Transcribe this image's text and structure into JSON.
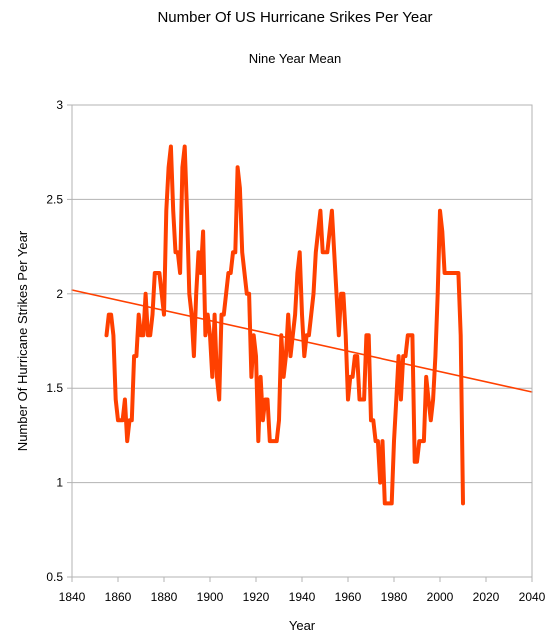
{
  "chart_data": {
    "type": "line",
    "title": "Number Of US Hurricane Srikes Per Year",
    "subtitle": "Nine Year Mean",
    "xlabel": "Year",
    "ylabel": "Number Of Hurricane Strikes Per Year",
    "xlim": [
      1840,
      2040
    ],
    "ylim": [
      0.5,
      3
    ],
    "x_ticks": [
      1840,
      1860,
      1880,
      1900,
      1920,
      1940,
      1960,
      1980,
      2000,
      2020,
      2040
    ],
    "y_ticks": [
      0.5,
      1,
      1.5,
      2,
      2.5,
      3
    ],
    "y_tick_labels": [
      "0.5",
      "1",
      "1.5",
      "2",
      "2.5",
      "3"
    ],
    "grid": true,
    "legend": "none",
    "series": [
      {
        "kind": "data",
        "color": "#ff4000",
        "x": [
          1855,
          1856,
          1857,
          1858,
          1859,
          1860,
          1861,
          1862,
          1863,
          1864,
          1865,
          1866,
          1867,
          1868,
          1869,
          1870,
          1871,
          1872,
          1873,
          1874,
          1875,
          1876,
          1877,
          1878,
          1879,
          1880,
          1881,
          1882,
          1883,
          1884,
          1885,
          1886,
          1887,
          1888,
          1889,
          1890,
          1891,
          1892,
          1893,
          1894,
          1895,
          1896,
          1897,
          1898,
          1899,
          1900,
          1901,
          1902,
          1903,
          1904,
          1905,
          1906,
          1907,
          1908,
          1909,
          1910,
          1911,
          1912,
          1913,
          1914,
          1915,
          1916,
          1917,
          1918,
          1919,
          1920,
          1921,
          1922,
          1923,
          1924,
          1925,
          1926,
          1927,
          1928,
          1929,
          1930,
          1931,
          1932,
          1933,
          1934,
          1935,
          1936,
          1937,
          1938,
          1939,
          1940,
          1941,
          1942,
          1943,
          1944,
          1945,
          1946,
          1947,
          1948,
          1949,
          1950,
          1951,
          1952,
          1953,
          1954,
          1955,
          1956,
          1957,
          1958,
          1959,
          1960,
          1961,
          1962,
          1963,
          1964,
          1965,
          1966,
          1967,
          1968,
          1969,
          1970,
          1971,
          1972,
          1973,
          1974,
          1975,
          1976,
          1977,
          1978,
          1979,
          1980,
          1981,
          1982,
          1983,
          1984,
          1985,
          1986,
          1987,
          1988,
          1989,
          1990,
          1991,
          1992,
          1993,
          1994,
          1995,
          1996,
          1997,
          1998,
          1999,
          2000,
          2001,
          2002,
          2003,
          2004,
          2005,
          2006,
          2007,
          2008,
          2009,
          2010
        ],
        "y": [
          1.78,
          1.89,
          1.89,
          1.78,
          1.44,
          1.33,
          1.33,
          1.33,
          1.44,
          1.22,
          1.33,
          1.33,
          1.67,
          1.67,
          1.89,
          1.78,
          1.78,
          2.0,
          1.78,
          1.78,
          1.89,
          2.11,
          2.11,
          2.11,
          2.0,
          1.89,
          2.44,
          2.67,
          2.78,
          2.44,
          2.22,
          2.22,
          2.11,
          2.67,
          2.78,
          2.44,
          2.0,
          1.89,
          1.67,
          2.0,
          2.22,
          2.11,
          2.33,
          1.78,
          1.89,
          1.78,
          1.56,
          1.89,
          1.56,
          1.44,
          1.89,
          1.89,
          2.0,
          2.11,
          2.11,
          2.22,
          2.22,
          2.67,
          2.56,
          2.22,
          2.11,
          2.0,
          2.0,
          1.56,
          1.78,
          1.67,
          1.22,
          1.56,
          1.33,
          1.44,
          1.44,
          1.22,
          1.22,
          1.22,
          1.22,
          1.33,
          1.78,
          1.56,
          1.67,
          1.89,
          1.67,
          1.78,
          1.89,
          2.11,
          2.22,
          1.89,
          1.67,
          1.78,
          1.78,
          1.89,
          2.0,
          2.22,
          2.33,
          2.44,
          2.22,
          2.22,
          2.22,
          2.33,
          2.44,
          2.22,
          2.0,
          1.78,
          2.0,
          2.0,
          1.78,
          1.44,
          1.56,
          1.56,
          1.67,
          1.67,
          1.44,
          1.44,
          1.44,
          1.78,
          1.78,
          1.33,
          1.33,
          1.22,
          1.22,
          1.0,
          1.22,
          0.89,
          0.89,
          0.89,
          0.89,
          1.22,
          1.44,
          1.67,
          1.44,
          1.67,
          1.67,
          1.78,
          1.78,
          1.78,
          1.11,
          1.11,
          1.22,
          1.22,
          1.22,
          1.56,
          1.44,
          1.33,
          1.44,
          1.67,
          2.0,
          2.44,
          2.33,
          2.11,
          2.11,
          2.11,
          2.11,
          2.11,
          2.11,
          2.11,
          1.78,
          0.89
        ]
      },
      {
        "kind": "trendline",
        "color": "#ff4000",
        "x": [
          1840,
          2040
        ],
        "y": [
          2.02,
          1.48
        ]
      }
    ]
  }
}
